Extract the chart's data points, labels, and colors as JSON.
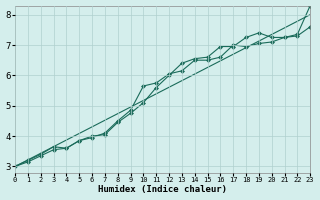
{
  "xlabel": "Humidex (Indice chaleur)",
  "bg_color": "#d4eeec",
  "grid_color": "#b0d0ce",
  "line_color": "#1a6b5a",
  "x": [
    0,
    1,
    2,
    3,
    4,
    5,
    6,
    7,
    8,
    9,
    10,
    11,
    12,
    13,
    14,
    15,
    16,
    17,
    18,
    19,
    20,
    21,
    22,
    23
  ],
  "y_straight": [
    3.0,
    3.217,
    3.435,
    3.652,
    3.87,
    4.087,
    4.304,
    4.522,
    4.739,
    4.957,
    5.174,
    5.391,
    5.609,
    5.826,
    6.043,
    6.261,
    6.478,
    6.696,
    6.913,
    7.13,
    7.348,
    7.565,
    7.783,
    8.0
  ],
  "y_upper": [
    3.0,
    3.2,
    3.4,
    3.65,
    3.6,
    3.85,
    3.95,
    4.1,
    4.5,
    4.85,
    5.65,
    5.75,
    6.05,
    6.15,
    6.5,
    6.5,
    6.6,
    7.0,
    6.95,
    7.05,
    7.1,
    7.25,
    7.3,
    7.6
  ],
  "y_lower": [
    3.0,
    3.15,
    3.35,
    3.55,
    3.6,
    3.85,
    4.0,
    4.05,
    4.45,
    4.75,
    5.1,
    5.6,
    6.0,
    6.4,
    6.55,
    6.6,
    6.95,
    6.95,
    7.25,
    7.4,
    7.25,
    7.25,
    7.35,
    8.3
  ],
  "xlim": [
    0,
    23
  ],
  "ylim": [
    2.8,
    8.3
  ],
  "yticks": [
    3,
    4,
    5,
    6,
    7,
    8
  ],
  "xticks": [
    0,
    1,
    2,
    3,
    4,
    5,
    6,
    7,
    8,
    9,
    10,
    11,
    12,
    13,
    14,
    15,
    16,
    17,
    18,
    19,
    20,
    21,
    22,
    23
  ],
  "xlabel_fontsize": 6.5,
  "ytick_fontsize": 6.5,
  "xtick_fontsize": 5.0,
  "marker_size": 2.0,
  "line_width": 0.8
}
